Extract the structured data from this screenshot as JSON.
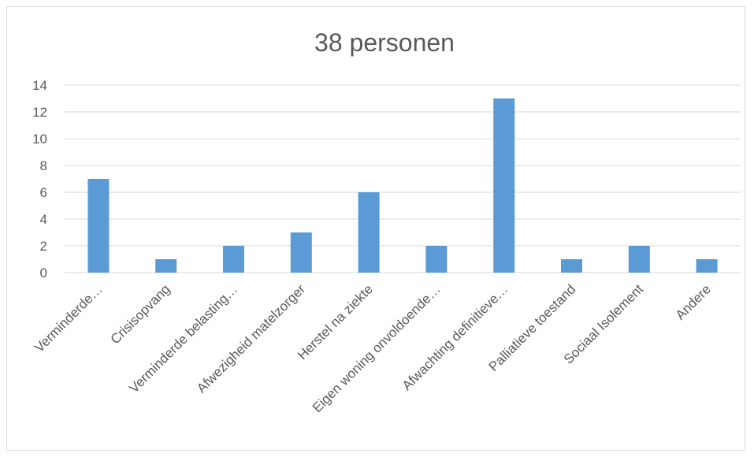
{
  "chart_data": {
    "type": "bar",
    "title": "38 personen",
    "categories": [
      "Verminderde…",
      "Crisisopvang",
      "Verminderde belasting…",
      "Afwezigheid matelzorger",
      "Herstel na ziekte",
      "Eigen woning onvoldoende…",
      "Afwachting definitieve…",
      "Palliatieve toestand",
      "Sociaal Isolement",
      "Andere"
    ],
    "values": [
      7,
      1,
      2,
      3,
      6,
      2,
      13,
      1,
      2,
      1
    ],
    "yticks": [
      "0",
      "2",
      "4",
      "6",
      "8",
      "10",
      "12",
      "14"
    ],
    "ylim": [
      0,
      14
    ],
    "grid": true,
    "bar_color": "#5b9bd5",
    "grid_color": "#d9d9d9"
  }
}
